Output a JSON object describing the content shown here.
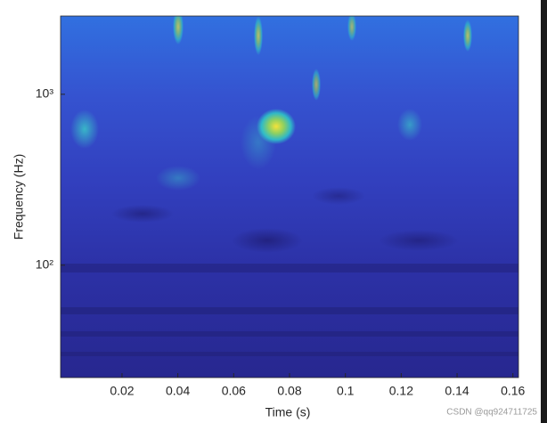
{
  "chart_data": {
    "type": "scalogram",
    "xlabel": "Time (s)",
    "ylabel": "Frequency (Hz)",
    "xlim": [
      -0.002,
      0.162
    ],
    "xticks": [
      0.02,
      0.04,
      0.06,
      0.08,
      0.1,
      0.12,
      0.14,
      0.16
    ],
    "ylim": [
      22,
      2870
    ],
    "ylog": true,
    "yticks": [
      {
        "value": 100,
        "label": "10²"
      },
      {
        "value": 1000,
        "label": "10³"
      }
    ],
    "watermark": "CSDN @qq924711725"
  }
}
